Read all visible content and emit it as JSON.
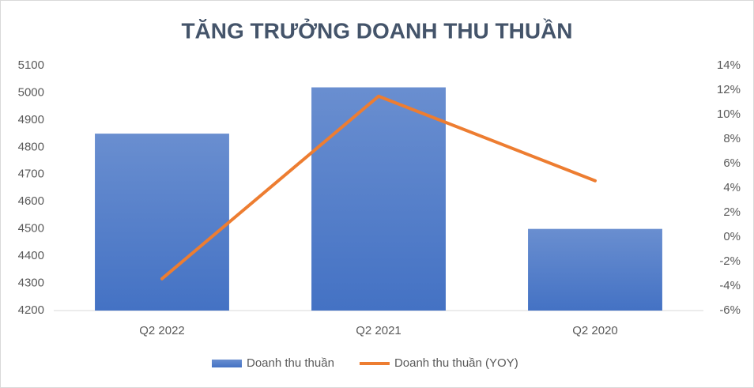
{
  "chart_data": {
    "type": "bar-line",
    "title": "TĂNG TRƯỞNG DOANH THU THUẦN",
    "categories": [
      "Q2 2022",
      "Q2 2021",
      "Q2 2020"
    ],
    "series": [
      {
        "name": "Doanh thu thuần",
        "type": "bar",
        "color": "#4472c4",
        "values": [
          4850,
          5020,
          4500
        ]
      },
      {
        "name": "Doanh thu thuần (YOY)",
        "type": "line",
        "axis": "y2",
        "color": "#ed7d31",
        "values": [
          -3.4,
          11.5,
          4.6
        ]
      }
    ],
    "ylim": [
      4200,
      5100
    ],
    "yticks": [
      4200,
      4300,
      4400,
      4500,
      4600,
      4700,
      4800,
      4900,
      5000,
      5100
    ],
    "y2lim": [
      -6,
      14
    ],
    "y2ticks": [
      {
        "value": -6,
        "label": "-6%"
      },
      {
        "value": -4,
        "label": "-4%"
      },
      {
        "value": -2,
        "label": "-2%"
      },
      {
        "value": 0,
        "label": "0%"
      },
      {
        "value": 2,
        "label": "2%"
      },
      {
        "value": 4,
        "label": "4%"
      },
      {
        "value": 6,
        "label": "6%"
      },
      {
        "value": 8,
        "label": "8%"
      },
      {
        "value": 10,
        "label": "10%"
      },
      {
        "value": 12,
        "label": "12%"
      },
      {
        "value": 14,
        "label": "14%"
      }
    ],
    "grid": false,
    "legend": "bottom"
  }
}
